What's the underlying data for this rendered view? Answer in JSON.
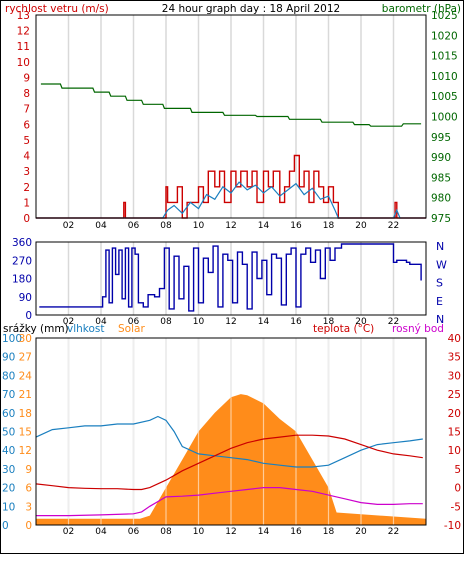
{
  "header": {
    "wind_label": "rychlost vetru (m/s)",
    "title": "24 hour graph day : 18 April 2012",
    "baro_label": "barometr (hPa)"
  },
  "bottom_labels": {
    "rain": "srážky (mm)",
    "humidity": "vlhkost",
    "solar": "Solar",
    "temperature": "teplota (°C)",
    "dewpoint": "rosný bod"
  },
  "colors": {
    "wind": "#cc0000",
    "gust": "#1a7fbf",
    "baro": "#006600",
    "winddir": "#0000aa",
    "humidity": "#1a7fbf",
    "solar": "#ff8c1a",
    "temperature": "#cc0000",
    "dewpoint": "#cc00cc",
    "grid": "#d9d9d9"
  },
  "chart_data": [
    {
      "type": "line",
      "title": "24 hour graph day : 18 April 2012",
      "x_ticks": [
        "02",
        "04",
        "06",
        "08",
        "10",
        "12",
        "14",
        "16",
        "18",
        "20",
        "22"
      ],
      "xlim": [
        0,
        24
      ],
      "left_axis": {
        "label": "rychlost vetru (m/s)",
        "ylim": [
          0,
          13
        ],
        "ticks": [
          0,
          1,
          2,
          3,
          4,
          5,
          6,
          7,
          8,
          9,
          10,
          11,
          12,
          13
        ]
      },
      "right_axis": {
        "label": "barometr (hPa)",
        "ylim": [
          975,
          1025
        ],
        "ticks": [
          975,
          980,
          985,
          990,
          995,
          1000,
          1005,
          1010,
          1015,
          1020,
          1025
        ]
      },
      "series": [
        {
          "name": "barometr (hPa)",
          "axis": "right",
          "x": [
            0.3,
            1.5,
            1.6,
            3.5,
            3.6,
            4.5,
            4.6,
            5.5,
            5.6,
            6.5,
            6.6,
            7.8,
            7.9,
            9.5,
            9.6,
            11.5,
            11.6,
            13.5,
            13.6,
            15.5,
            15.6,
            17.5,
            17.6,
            19.5,
            19.6,
            20.5,
            20.6,
            22.5,
            22.6,
            23.7
          ],
          "y": [
            1008,
            1008,
            1007,
            1007,
            1006,
            1006,
            1005,
            1005,
            1004,
            1004,
            1003,
            1003,
            1002,
            1002,
            1001,
            1001,
            1000.3,
            1000.3,
            1000,
            1000,
            999.3,
            999.3,
            998.6,
            998.6,
            998,
            998,
            997.6,
            997.6,
            998.2,
            998.2
          ]
        },
        {
          "name": "rychlost vetru (m/s)",
          "axis": "left",
          "x": [
            0,
            5.3,
            5.4,
            5.5,
            7.9,
            8.0,
            8.1,
            8.6,
            8.7,
            9.0,
            9.3,
            9.6,
            10.0,
            10.3,
            10.6,
            11.0,
            11.3,
            11.6,
            12.0,
            12.3,
            12.6,
            13.0,
            13.3,
            13.6,
            14.0,
            14.3,
            14.6,
            15.0,
            15.3,
            15.6,
            15.9,
            16.2,
            16.5,
            16.8,
            17.1,
            17.4,
            17.7,
            18.0,
            18.3,
            18.6,
            18.8,
            22.0,
            22.1,
            22.2,
            22.4,
            24
          ],
          "y": [
            0,
            0,
            1,
            0,
            0,
            2,
            1,
            1,
            2,
            0,
            1,
            1,
            2,
            1,
            3,
            2,
            3,
            1,
            3,
            2,
            3,
            2,
            3,
            1,
            3,
            2,
            3,
            1,
            2,
            3,
            4,
            2,
            3,
            1,
            3,
            2,
            1,
            2,
            1,
            0,
            0,
            0,
            1,
            0,
            0,
            0
          ]
        },
        {
          "name": "gust",
          "axis": "left",
          "x": [
            0,
            7.8,
            8.1,
            8.5,
            9.0,
            9.5,
            10.0,
            10.5,
            11.0,
            11.5,
            12.0,
            12.5,
            13.0,
            13.5,
            14.0,
            14.5,
            15.0,
            15.5,
            16.0,
            16.5,
            17.0,
            17.5,
            18.0,
            18.4,
            18.6,
            22.0,
            22.2,
            22.4,
            24
          ],
          "y": [
            0,
            0,
            0.5,
            0.8,
            0.3,
            1.0,
            0.6,
            1.5,
            1.2,
            2.0,
            1.6,
            2.3,
            1.8,
            2.1,
            1.6,
            2.0,
            1.4,
            1.8,
            2.2,
            1.5,
            1.9,
            1.2,
            1.4,
            0.5,
            0,
            0,
            0.5,
            0,
            0
          ]
        }
      ]
    },
    {
      "type": "line",
      "x_ticks": [
        "02",
        "04",
        "06",
        "08",
        "10",
        "12",
        "14",
        "16",
        "18",
        "20",
        "22"
      ],
      "xlim": [
        0,
        24
      ],
      "left_axis": {
        "ylim": [
          0,
          360
        ],
        "ticks": [
          0,
          90,
          180,
          270,
          360
        ]
      },
      "right_axis": {
        "labels": [
          "N",
          "W",
          "S",
          "E",
          "N"
        ]
      },
      "series": [
        {
          "name": "winddir",
          "x": [
            0.2,
            3.8,
            4.1,
            4.3,
            4.5,
            4.7,
            4.9,
            5.1,
            5.3,
            5.5,
            5.7,
            5.9,
            6.1,
            6.3,
            6.6,
            6.9,
            7.3,
            7.6,
            7.9,
            8.2,
            8.5,
            8.8,
            9.1,
            9.4,
            9.7,
            10.0,
            10.3,
            10.6,
            10.9,
            11.2,
            11.5,
            11.8,
            12.1,
            12.4,
            12.7,
            13.0,
            13.3,
            13.6,
            13.9,
            14.2,
            14.5,
            14.8,
            15.1,
            15.4,
            15.7,
            16.0,
            16.3,
            16.6,
            16.9,
            17.2,
            17.5,
            17.8,
            18.1,
            18.4,
            18.8,
            19.5,
            20.0,
            21.0,
            21.8,
            22.0,
            22.2,
            22.8,
            23.0,
            23.7
          ],
          "y": [
            40,
            40,
            90,
            320,
            60,
            330,
            200,
            320,
            80,
            330,
            40,
            330,
            300,
            60,
            40,
            100,
            90,
            130,
            330,
            30,
            290,
            80,
            240,
            20,
            330,
            60,
            280,
            210,
            340,
            40,
            300,
            270,
            60,
            310,
            250,
            30,
            310,
            180,
            270,
            100,
            300,
            280,
            50,
            300,
            330,
            40,
            300,
            330,
            260,
            320,
            180,
            330,
            270,
            330,
            350,
            350,
            350,
            350,
            350,
            260,
            270,
            260,
            250,
            170
          ]
        }
      ]
    },
    {
      "type": "area",
      "x_ticks": [
        "02",
        "04",
        "06",
        "08",
        "10",
        "12",
        "14",
        "16",
        "18",
        "20",
        "22"
      ],
      "xlim": [
        0,
        24
      ],
      "axes": {
        "rain": {
          "label": "srážky (mm)",
          "ylim": [
            0,
            30
          ],
          "ticks": [
            0,
            3,
            6,
            9,
            12,
            15,
            18,
            21,
            24,
            27,
            30
          ]
        },
        "humidity": {
          "label": "vlhkost",
          "ylim": [
            0,
            100
          ],
          "ticks": [
            0,
            10,
            20,
            30,
            40,
            50,
            60,
            70,
            80,
            90,
            100
          ]
        },
        "temperature": {
          "label": "teplota (°C)",
          "ylim": [
            -10,
            40
          ],
          "ticks": [
            -10,
            -5,
            0,
            5,
            10,
            15,
            20,
            25,
            30,
            35,
            40
          ]
        }
      },
      "series": [
        {
          "name": "Solar",
          "axis": "rain",
          "x": [
            0,
            6.4,
            7,
            8,
            9,
            10,
            11,
            12,
            12.6,
            13,
            14,
            15,
            16,
            17,
            18,
            18.5,
            24
          ],
          "y": [
            1,
            1,
            1.5,
            6,
            10.5,
            15,
            18,
            20.5,
            21,
            20.8,
            19.5,
            17,
            15,
            10.5,
            6,
            2,
            1
          ]
        },
        {
          "name": "vlhkost",
          "axis": "humidity",
          "x": [
            0,
            1,
            2,
            3,
            4,
            5,
            6,
            7,
            7.5,
            8,
            8.5,
            9,
            10,
            11,
            12,
            13,
            14,
            15,
            16,
            17,
            18,
            19,
            20,
            21,
            22,
            23,
            23.8
          ],
          "y": [
            47,
            51,
            52,
            53,
            53,
            54,
            54,
            56,
            58,
            56,
            50,
            42,
            38,
            37,
            36,
            35,
            33,
            32,
            31,
            31,
            32,
            36,
            40,
            43,
            44,
            45,
            46
          ]
        },
        {
          "name": "teplota (°C)",
          "axis": "temperature",
          "x": [
            0,
            1,
            2,
            3,
            4,
            5,
            6,
            6.5,
            7,
            8,
            9,
            10,
            11,
            12,
            13,
            14,
            15,
            16,
            17,
            18,
            19,
            20,
            21,
            22,
            23,
            23.8
          ],
          "y": [
            1,
            0.5,
            0,
            -0.2,
            -0.3,
            -0.3,
            -0.5,
            -0.5,
            0,
            2,
            4.5,
            6.5,
            8.5,
            10.5,
            12,
            13,
            13.5,
            14,
            14,
            13.8,
            13,
            11.5,
            10,
            9,
            8.5,
            8
          ]
        },
        {
          "name": "rosný bod",
          "axis": "temperature",
          "x": [
            0,
            2,
            4,
            6,
            6.5,
            7,
            8,
            9,
            10,
            11,
            12,
            13,
            14,
            15,
            16,
            17,
            18,
            19,
            20,
            21,
            22,
            23,
            23.8
          ],
          "y": [
            -7.5,
            -7.5,
            -7.3,
            -7,
            -6.5,
            -5,
            -2.5,
            -2.3,
            -2,
            -1.5,
            -1,
            -0.5,
            0,
            0,
            -0.5,
            -1,
            -2,
            -3,
            -4,
            -4.5,
            -4.5,
            -4.3,
            -4.3
          ]
        }
      ]
    }
  ]
}
